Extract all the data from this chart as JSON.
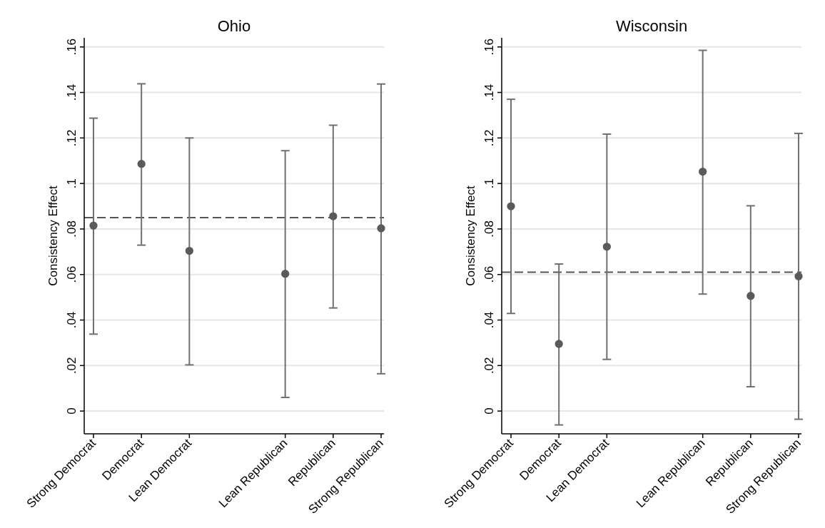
{
  "chart_data": [
    {
      "type": "scatter",
      "title": "Ohio",
      "ylabel": "Consistency Effect",
      "categories": [
        "Strong Democrat",
        "Democrat",
        "Lean Democrat",
        null,
        "Lean Republican",
        "Republican",
        "Strong Republican"
      ],
      "series": [
        {
          "color": "#5a5a5a",
          "values": [
            0.0815,
            0.1086,
            0.0704,
            null,
            0.0603,
            0.0856,
            0.0803
          ],
          "errors": [
            [
              0.0338,
              0.1287
            ],
            [
              0.0729,
              0.1438
            ],
            [
              0.0203,
              0.12
            ],
            null,
            [
              0.006,
              0.1144
            ],
            [
              0.0453,
              0.1256
            ],
            [
              0.0164,
              0.1437
            ]
          ]
        }
      ],
      "ylim": [
        -0.01,
        0.164
      ],
      "yticks": [
        0,
        {
          "value": 0.02,
          "label": ".02"
        },
        {
          "value": 0.04,
          "label": ".04"
        },
        {
          "value": 0.06,
          "label": ".06"
        },
        {
          "value": 0.08,
          "label": ".08"
        },
        {
          "value": 0.1,
          "label": ".1"
        },
        {
          "value": 0.12,
          "label": ".12"
        },
        {
          "value": 0.14,
          "label": ".14"
        },
        {
          "value": 0.16,
          "label": ".16"
        }
      ],
      "grid": "y",
      "marker": "circle",
      "ref_lines": [
        {
          "axis": "y",
          "value": 0.085,
          "color": "#555555",
          "line_style": "dashed"
        }
      ]
    },
    {
      "type": "scatter",
      "title": "Wisconsin",
      "ylabel": "Consistency Effect",
      "categories": [
        "Strong Democrat",
        "Democrat",
        "Lean Democrat",
        null,
        "Lean Republican",
        "Republican",
        "Strong Republican"
      ],
      "series": [
        {
          "color": "#5a5a5a",
          "values": [
            0.09,
            0.0295,
            0.0722,
            null,
            0.1052,
            0.0506,
            0.0592
          ],
          "errors": [
            [
              0.0429,
              0.137
            ],
            [
              -0.0061,
              0.0646
            ],
            [
              0.0227,
              0.1217
            ],
            null,
            [
              0.0514,
              0.1585
            ],
            [
              0.0107,
              0.0902
            ],
            [
              -0.0036,
              0.122
            ]
          ]
        }
      ],
      "ylim": [
        -0.01,
        0.164
      ],
      "yticks": [
        0,
        {
          "value": 0.02,
          "label": ".02"
        },
        {
          "value": 0.04,
          "label": ".04"
        },
        {
          "value": 0.06,
          "label": ".06"
        },
        {
          "value": 0.08,
          "label": ".08"
        },
        {
          "value": 0.1,
          "label": ".1"
        },
        {
          "value": 0.12,
          "label": ".12"
        },
        {
          "value": 0.14,
          "label": ".14"
        },
        {
          "value": 0.16,
          "label": ".16"
        }
      ],
      "grid": "y",
      "marker": "circle",
      "ref_lines": [
        {
          "axis": "y",
          "value": 0.061,
          "color": "#555555",
          "line_style": "dashed"
        }
      ]
    }
  ]
}
